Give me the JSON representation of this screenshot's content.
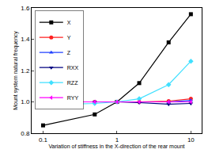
{
  "chart_data": {
    "type": "line",
    "x_label": "Variation of stiffness in the X-direction of the rear mount",
    "y_label": "Mount system natural frequency",
    "x": [
      0.1,
      0.5,
      1,
      2,
      5,
      10
    ],
    "log": "x",
    "xlim": [
      0.07,
      14
    ],
    "xticks": [
      0.1,
      1,
      10
    ],
    "ylim": [
      0.8,
      1.6
    ],
    "yticks": [
      0.8,
      {
        "value": 1,
        "label": "1.0"
      },
      1.2,
      1.4,
      1.6
    ],
    "grid": false,
    "legend": "upper left",
    "series": [
      {
        "name": "X",
        "color": "#000000",
        "marker": "square",
        "values": [
          0.85,
          0.92,
          1.0,
          1.12,
          1.38,
          1.56
        ]
      },
      {
        "name": "Y",
        "color": "#ff2020",
        "marker": "circle",
        "values": [
          1.0,
          1.0,
          1.0,
          1.0,
          1.005,
          1.02
        ]
      },
      {
        "name": "Z",
        "color": "#2040ff",
        "marker": "triangle-up",
        "values": [
          1.0,
          1.0,
          1.0,
          1.0,
          1.0,
          1.01
        ]
      },
      {
        "name": "RXX",
        "color": "#000080",
        "marker": "triangle-down",
        "values": [
          1.0,
          1.0,
          1.0,
          0.995,
          0.985,
          0.99
        ]
      },
      {
        "name": "RZZ",
        "color": "#40e0ff",
        "marker": "diamond",
        "values": [
          0.98,
          0.99,
          1.0,
          1.02,
          1.11,
          1.26
        ]
      },
      {
        "name": "RYY",
        "color": "#ff00ff",
        "marker": "triangle-left",
        "values": [
          1.0,
          1.0,
          1.0,
          1.0,
          1.0,
          1.0
        ]
      }
    ]
  }
}
